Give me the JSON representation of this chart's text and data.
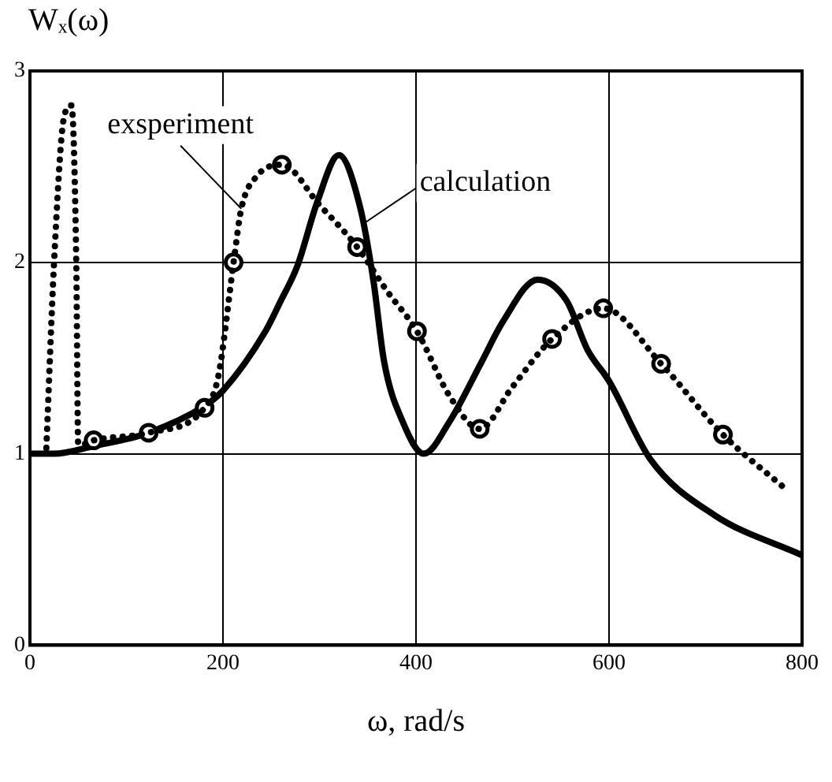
{
  "chart_data": {
    "type": "line",
    "xlabel": "ω, rad/s",
    "ylabel": "Wₓ(ω)",
    "xlim": [
      0,
      800
    ],
    "xticks": [
      0,
      200,
      400,
      600,
      800
    ],
    "ylim": [
      0,
      3
    ],
    "yticks": [
      0,
      1,
      2,
      3
    ],
    "grid": true,
    "legend": false,
    "series": [
      {
        "color": "#000000",
        "line_style": "dotted",
        "marker": "none",
        "x": [
          17,
          25,
          35,
          43,
          48,
          50,
          55,
          66,
          123,
          181,
          195,
          211,
          219,
          235,
          261,
          300,
          339,
          370,
          401,
          435,
          466,
          500,
          541,
          594,
          654,
          718,
          782
        ],
        "values": [
          1.03,
          2.0,
          2.75,
          2.82,
          2.0,
          1.05,
          1.05,
          1.07,
          1.11,
          1.24,
          1.4,
          2.0,
          2.28,
          2.45,
          2.51,
          2.3,
          2.08,
          1.85,
          1.64,
          1.3,
          1.13,
          1.35,
          1.6,
          1.76,
          1.47,
          1.1,
          0.82
        ]
      },
      {
        "type": "scatter",
        "color": "#000000",
        "marker": "circle",
        "x": [
          66,
          123,
          181,
          211,
          261,
          339,
          401,
          466,
          541,
          594,
          654,
          718
        ],
        "values": [
          1.07,
          1.11,
          1.24,
          2.0,
          2.51,
          2.08,
          1.64,
          1.13,
          1.6,
          1.76,
          1.47,
          1.1
        ]
      },
      {
        "color": "#000000",
        "line_style": "solid",
        "marker": "none",
        "x": [
          0,
          25,
          66,
          123,
          181,
          200,
          244,
          260,
          277,
          298,
          320,
          342,
          356,
          367,
          386,
          408,
          435,
          468,
          490,
          526,
          556,
          578,
          600,
          643,
          709,
          800
        ],
        "values": [
          1.0,
          1.0,
          1.04,
          1.11,
          1.25,
          1.33,
          1.64,
          1.8,
          1.98,
          2.32,
          2.56,
          2.29,
          1.9,
          1.48,
          1.17,
          1.0,
          1.17,
          1.48,
          1.69,
          1.91,
          1.8,
          1.54,
          1.38,
          0.97,
          0.68,
          0.47
        ]
      }
    ],
    "annotations": [
      {
        "text": "exsperiment",
        "x": 219,
        "y": 2.28
      },
      {
        "text": "calculation",
        "x": 345,
        "y": 2.2
      }
    ]
  }
}
